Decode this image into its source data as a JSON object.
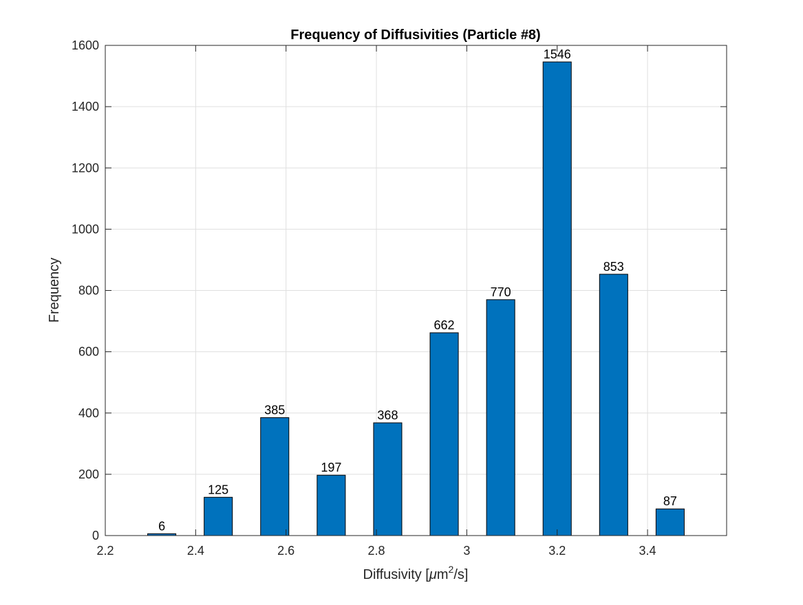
{
  "chart_data": {
    "type": "bar",
    "title": "Frequency of Diffusivities (Particle #8)",
    "xlabel_prefix": "Diffusivity [",
    "xlabel_mu": "μ",
    "xlabel_unit": "m",
    "xlabel_exp": "2",
    "xlabel_suffix": "/s]",
    "ylabel": "Frequency",
    "x": [
      2.325,
      2.45,
      2.575,
      2.7,
      2.825,
      2.95,
      3.075,
      3.2,
      3.325,
      3.45
    ],
    "values": [
      6,
      125,
      385,
      197,
      368,
      662,
      770,
      1546,
      853,
      87
    ],
    "data_labels": [
      "6",
      "125",
      "385",
      "197",
      "368",
      "662",
      "770",
      "1546",
      "853",
      "87"
    ],
    "bar_width": 0.0625,
    "xlim": [
      2.2,
      3.575
    ],
    "ylim": [
      0,
      1600
    ],
    "xticks": [
      2.2,
      2.4,
      2.6,
      2.8,
      3.0,
      3.2,
      3.4
    ],
    "xtick_labels": [
      "2.2",
      "2.4",
      "2.6",
      "2.8",
      "3",
      "3.2",
      "3.4"
    ],
    "yticks": [
      0,
      200,
      400,
      600,
      800,
      1000,
      1200,
      1400,
      1600
    ],
    "ytick_labels": [
      "0",
      "200",
      "400",
      "600",
      "800",
      "1000",
      "1200",
      "1400",
      "1600"
    ],
    "grid": true,
    "bar_color": "#0072bd",
    "bar_edge_color": "#000000",
    "grid_color": "#dfdfdf",
    "axis_color": "#262626"
  }
}
